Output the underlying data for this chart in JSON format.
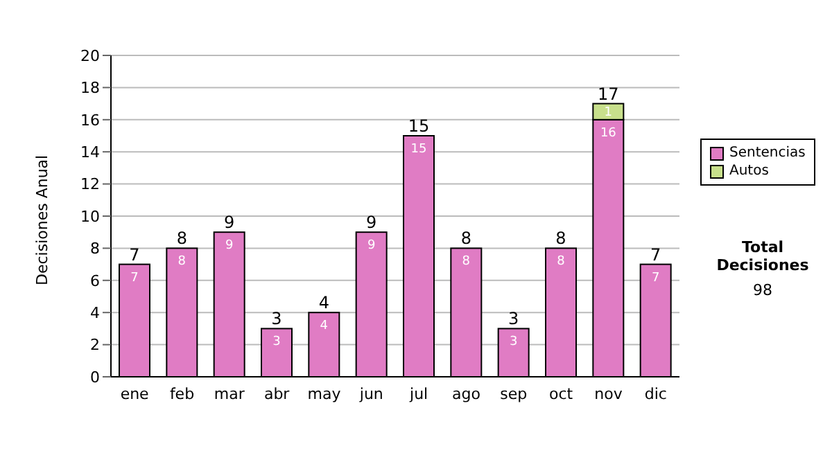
{
  "chart_data": {
    "type": "bar",
    "stacked": true,
    "ylabel": "Decisiones Anual",
    "categories": [
      "ene",
      "feb",
      "mar",
      "abr",
      "may",
      "jun",
      "jul",
      "ago",
      "sep",
      "oct",
      "nov",
      "dic"
    ],
    "series": [
      {
        "name": "Sentencias",
        "color": "#e07cc4",
        "values": [
          7,
          8,
          9,
          3,
          4,
          9,
          15,
          8,
          3,
          8,
          16,
          7
        ]
      },
      {
        "name": "Autos",
        "color": "#c8e08c",
        "values": [
          null,
          null,
          null,
          null,
          null,
          null,
          null,
          null,
          null,
          null,
          1,
          null
        ]
      }
    ],
    "ylim": [
      0,
      20
    ],
    "yticks": [
      0,
      2,
      4,
      6,
      8,
      10,
      12,
      14,
      16,
      18,
      20
    ],
    "grid": "y",
    "legend": "right",
    "data_labels": true,
    "totals": [
      "7",
      "8",
      "9",
      "3",
      "4",
      "9",
      "15",
      "8",
      "3",
      "8",
      "17",
      "7"
    ],
    "annotations": [
      "Total Decisiones",
      "98"
    ]
  }
}
